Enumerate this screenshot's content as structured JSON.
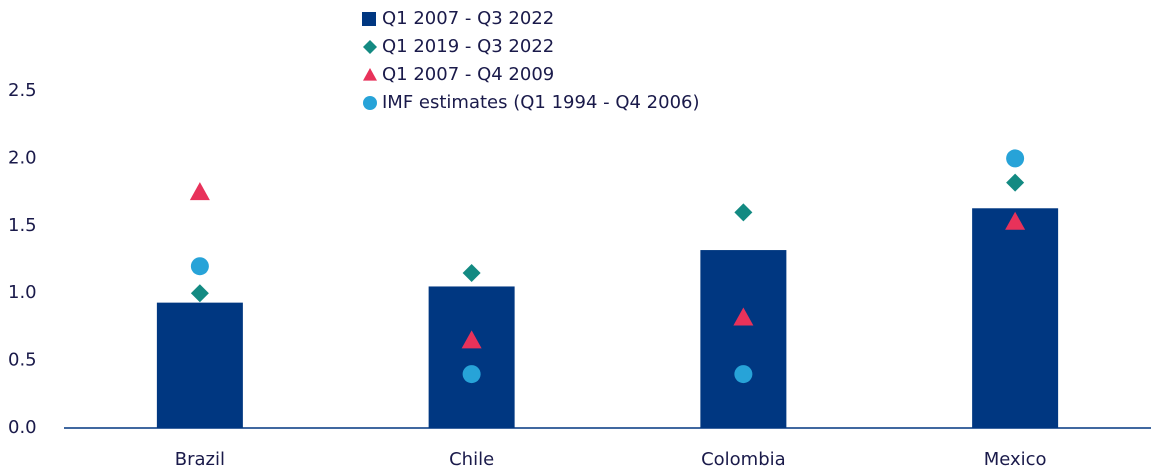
{
  "chart_data": {
    "type": "bar",
    "categories": [
      "Brazil",
      "Chile",
      "Colombia",
      "Mexico"
    ],
    "series": [
      {
        "name": "Q1 2007 - Q3 2022",
        "color": "#003781",
        "marker": "bar",
        "values": [
          0.93,
          1.05,
          1.32,
          1.63
        ]
      },
      {
        "name": "Q1 2019 - Q3 2022",
        "color": "#138a82",
        "marker": "diamond",
        "values": [
          1.0,
          1.15,
          1.6,
          1.82
        ]
      },
      {
        "name": "Q1 2007 - Q4 2009",
        "color": "#e8325a",
        "marker": "triangle",
        "values": [
          1.75,
          0.65,
          0.82,
          1.53
        ]
      },
      {
        "name": "IMF estimates (Q1 1994 - Q4 2006)",
        "color": "#27a3d8",
        "marker": "circle",
        "values": [
          1.2,
          0.4,
          0.4,
          2.0
        ]
      }
    ],
    "ylim": [
      0,
      2.5
    ],
    "yticks": [
      {
        "value": 0,
        "label": "0.0"
      },
      0.5,
      {
        "value": 1,
        "label": "1.0"
      },
      1.5,
      {
        "value": 2,
        "label": "2.0"
      },
      2.5
    ],
    "grid": false
  }
}
